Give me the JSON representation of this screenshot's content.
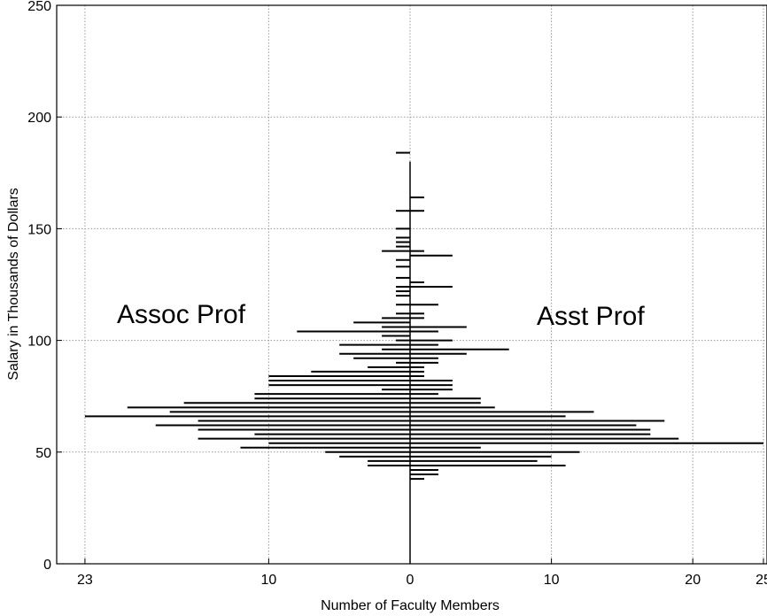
{
  "chart_data": {
    "type": "bar",
    "orientation": "horizontal",
    "xlabel": "Number of Faculty Members",
    "ylabel": "Salary in Thousands of Dollars",
    "ylim": [
      0,
      250
    ],
    "xlim": [
      -23,
      25
    ],
    "grid": true,
    "x_ticks": [
      {
        "value": -23,
        "label": "23"
      },
      {
        "value": -10,
        "label": "10"
      },
      {
        "value": 0,
        "label": "0"
      },
      {
        "value": 10,
        "label": "10"
      },
      {
        "value": 20,
        "label": "20"
      },
      {
        "value": 25,
        "label": "25"
      }
    ],
    "y_ticks": [
      {
        "value": 0,
        "label": "0"
      },
      {
        "value": 50,
        "label": "50"
      },
      {
        "value": 100,
        "label": "100"
      },
      {
        "value": 150,
        "label": "150"
      },
      {
        "value": 200,
        "label": "200"
      },
      {
        "value": 250,
        "label": "250"
      }
    ],
    "annotations": [
      {
        "text": "Assoc Prof",
        "side": "left"
      },
      {
        "text": "Asst Prof",
        "side": "right"
      }
    ],
    "series": [
      {
        "name": "Assoc Prof",
        "side": "left",
        "points": [
          {
            "y": 184,
            "count": 1
          },
          {
            "y": 158,
            "count": 1
          },
          {
            "y": 150,
            "count": 1
          },
          {
            "y": 146,
            "count": 1
          },
          {
            "y": 144,
            "count": 1
          },
          {
            "y": 142,
            "count": 1
          },
          {
            "y": 140,
            "count": 2
          },
          {
            "y": 136,
            "count": 1
          },
          {
            "y": 133,
            "count": 1
          },
          {
            "y": 128,
            "count": 1
          },
          {
            "y": 124,
            "count": 1
          },
          {
            "y": 122,
            "count": 1
          },
          {
            "y": 120,
            "count": 1
          },
          {
            "y": 116,
            "count": 1
          },
          {
            "y": 112,
            "count": 1
          },
          {
            "y": 110,
            "count": 2
          },
          {
            "y": 108,
            "count": 4
          },
          {
            "y": 106,
            "count": 2
          },
          {
            "y": 104,
            "count": 8
          },
          {
            "y": 102,
            "count": 2
          },
          {
            "y": 100,
            "count": 1
          },
          {
            "y": 98,
            "count": 5
          },
          {
            "y": 96,
            "count": 2
          },
          {
            "y": 94,
            "count": 5
          },
          {
            "y": 92,
            "count": 4
          },
          {
            "y": 90,
            "count": 1
          },
          {
            "y": 88,
            "count": 3
          },
          {
            "y": 86,
            "count": 7
          },
          {
            "y": 84,
            "count": 10
          },
          {
            "y": 82,
            "count": 10
          },
          {
            "y": 80,
            "count": 10
          },
          {
            "y": 78,
            "count": 2
          },
          {
            "y": 76,
            "count": 11
          },
          {
            "y": 74,
            "count": 11
          },
          {
            "y": 72,
            "count": 16
          },
          {
            "y": 70,
            "count": 20
          },
          {
            "y": 68,
            "count": 17
          },
          {
            "y": 66,
            "count": 23
          },
          {
            "y": 64,
            "count": 15
          },
          {
            "y": 62,
            "count": 18
          },
          {
            "y": 60,
            "count": 15
          },
          {
            "y": 58,
            "count": 11
          },
          {
            "y": 56,
            "count": 15
          },
          {
            "y": 54,
            "count": 10
          },
          {
            "y": 52,
            "count": 12
          },
          {
            "y": 50,
            "count": 6
          },
          {
            "y": 48,
            "count": 5
          },
          {
            "y": 46,
            "count": 3
          },
          {
            "y": 44,
            "count": 3
          }
        ]
      },
      {
        "name": "Asst Prof",
        "side": "right",
        "points": [
          {
            "y": 164,
            "count": 1
          },
          {
            "y": 158,
            "count": 1
          },
          {
            "y": 140,
            "count": 1
          },
          {
            "y": 138,
            "count": 3
          },
          {
            "y": 126,
            "count": 1
          },
          {
            "y": 124,
            "count": 3
          },
          {
            "y": 116,
            "count": 2
          },
          {
            "y": 112,
            "count": 1
          },
          {
            "y": 110,
            "count": 1
          },
          {
            "y": 106,
            "count": 4
          },
          {
            "y": 104,
            "count": 2
          },
          {
            "y": 100,
            "count": 3
          },
          {
            "y": 98,
            "count": 2
          },
          {
            "y": 96,
            "count": 7
          },
          {
            "y": 94,
            "count": 4
          },
          {
            "y": 92,
            "count": 2
          },
          {
            "y": 90,
            "count": 2
          },
          {
            "y": 88,
            "count": 1
          },
          {
            "y": 86,
            "count": 1
          },
          {
            "y": 84,
            "count": 1
          },
          {
            "y": 82,
            "count": 3
          },
          {
            "y": 80,
            "count": 3
          },
          {
            "y": 78,
            "count": 3
          },
          {
            "y": 76,
            "count": 2
          },
          {
            "y": 74,
            "count": 5
          },
          {
            "y": 72,
            "count": 5
          },
          {
            "y": 70,
            "count": 6
          },
          {
            "y": 68,
            "count": 13
          },
          {
            "y": 66,
            "count": 11
          },
          {
            "y": 64,
            "count": 18
          },
          {
            "y": 62,
            "count": 16
          },
          {
            "y": 60,
            "count": 17
          },
          {
            "y": 58,
            "count": 17
          },
          {
            "y": 56,
            "count": 19
          },
          {
            "y": 54,
            "count": 25
          },
          {
            "y": 52,
            "count": 5
          },
          {
            "y": 50,
            "count": 12
          },
          {
            "y": 48,
            "count": 10
          },
          {
            "y": 46,
            "count": 9
          },
          {
            "y": 44,
            "count": 11
          },
          {
            "y": 42,
            "count": 2
          },
          {
            "y": 40,
            "count": 2
          },
          {
            "y": 38,
            "count": 1
          }
        ]
      }
    ]
  }
}
